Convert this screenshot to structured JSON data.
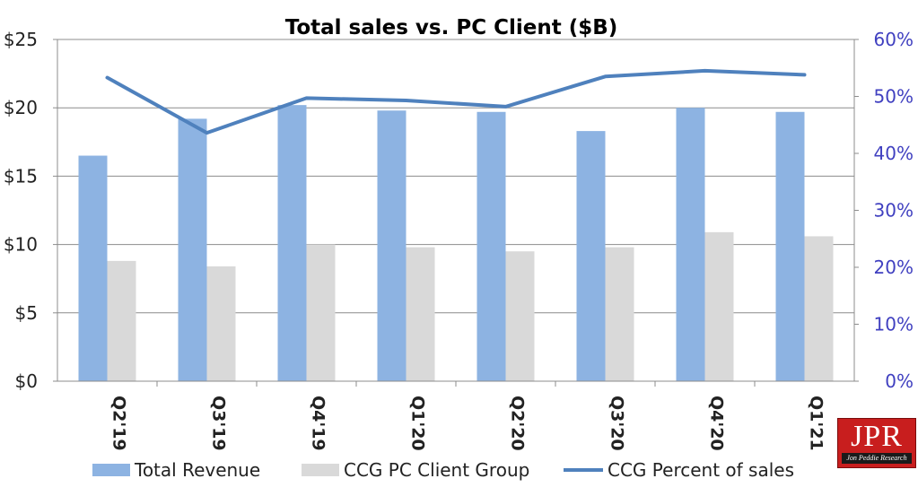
{
  "chart_data": {
    "type": "bar",
    "title": "Total sales vs. PC Client ($B)",
    "categories": [
      "Q2'19",
      "Q3'19",
      "Q4'19",
      "Q1'20",
      "Q2'20",
      "Q3'20",
      "Q4'20",
      "Q1'21"
    ],
    "series": [
      {
        "name": "Total Revenue",
        "type": "bar",
        "axis": "left",
        "color": "#8db3e2",
        "values": [
          16.5,
          19.2,
          20.2,
          19.8,
          19.7,
          18.3,
          20.0,
          19.7
        ]
      },
      {
        "name": "CCG PC Client Group",
        "type": "bar",
        "axis": "left",
        "color": "#d9d9d9",
        "values": [
          8.8,
          8.4,
          10.0,
          9.8,
          9.5,
          9.8,
          10.9,
          10.6
        ]
      },
      {
        "name": "CCG Percent of sales",
        "type": "line",
        "axis": "right",
        "color": "#4f81bd",
        "values": [
          53.3,
          43.6,
          49.7,
          49.3,
          48.2,
          53.5,
          54.5,
          53.8
        ]
      }
    ],
    "y_left": {
      "min": 0,
      "max": 25,
      "ticks": [
        "$0",
        "$5",
        "$10",
        "$15",
        "$20",
        "$25"
      ]
    },
    "y_right": {
      "min": 0,
      "max": 60,
      "ticks": [
        "0%",
        "10%",
        "20%",
        "30%",
        "40%",
        "50%",
        "60%"
      ],
      "color": "#4040c0"
    },
    "grid": true,
    "legend_position": "bottom"
  },
  "logo": {
    "main": "JPR",
    "sub": "Jon Peddie Research"
  }
}
